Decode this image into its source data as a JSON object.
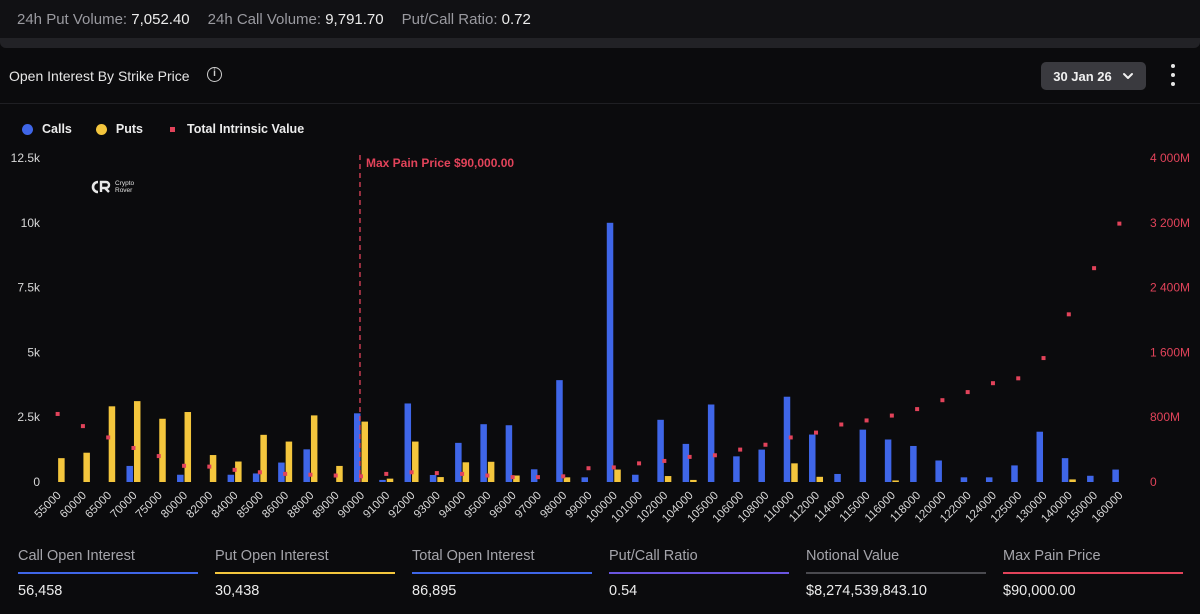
{
  "topbar": {
    "put_volume_label": "24h Put Volume:",
    "put_volume_value": "7,052.40",
    "call_volume_label": "24h Call Volume:",
    "call_volume_value": "9,791.70",
    "ratio_label": "Put/Call Ratio:",
    "ratio_value": "0.72"
  },
  "card": {
    "title": "Open Interest By Strike Price",
    "info_icon": "info-icon",
    "date_selected": "30 Jan 26",
    "menu_icon": "kebab-icon"
  },
  "legend": {
    "calls": "Calls",
    "puts": "Puts",
    "intrinsic": "Total Intrinsic Value"
  },
  "logo": {
    "line1": "Crypto",
    "line2": "Rover"
  },
  "colors": {
    "calls": "#3f66e8",
    "puts": "#f4c63d",
    "intrinsic": "#e2435a",
    "maxpain": "#e2435a"
  },
  "chart_data": {
    "type": "bar",
    "categories": [
      "55000",
      "60000",
      "65000",
      "70000",
      "75000",
      "80000",
      "82000",
      "84000",
      "85000",
      "86000",
      "88000",
      "89000",
      "90000",
      "91000",
      "92000",
      "93000",
      "94000",
      "95000",
      "96000",
      "97000",
      "98000",
      "99000",
      "100000",
      "101000",
      "102000",
      "104000",
      "105000",
      "106000",
      "108000",
      "110000",
      "112000",
      "114000",
      "115000",
      "116000",
      "118000",
      "120000",
      "122000",
      "124000",
      "125000",
      "130000",
      "140000",
      "150000",
      "160000"
    ],
    "series": [
      {
        "name": "Calls",
        "axis": "left",
        "values": [
          0,
          0,
          0,
          620,
          0,
          280,
          0,
          280,
          330,
          750,
          1260,
          0,
          2650,
          80,
          3030,
          270,
          1510,
          2230,
          2190,
          490,
          3930,
          180,
          10000,
          280,
          2400,
          1470,
          2990,
          990,
          1250,
          3290,
          1830,
          310,
          2020,
          1640,
          1390,
          830,
          180,
          180,
          640,
          1940,
          920,
          240,
          480
        ]
      },
      {
        "name": "Puts",
        "axis": "left",
        "values": [
          920,
          1130,
          2920,
          3120,
          2440,
          2700,
          1040,
          790,
          1820,
          1560,
          2570,
          620,
          2330,
          130,
          1560,
          190,
          760,
          780,
          250,
          0,
          180,
          0,
          480,
          0,
          230,
          80,
          0,
          0,
          0,
          720,
          200,
          0,
          0,
          60,
          0,
          0,
          0,
          0,
          0,
          0,
          100,
          0,
          0
        ]
      },
      {
        "name": "Total Intrinsic Value",
        "axis": "right",
        "type": "scatter",
        "values": [
          840,
          690,
          550,
          420,
          320,
          200,
          190,
          150,
          120,
          100,
          90,
          80,
          70,
          100,
          120,
          110,
          100,
          80,
          60,
          60,
          70,
          170,
          180,
          230,
          260,
          310,
          330,
          400,
          460,
          550,
          610,
          710,
          760,
          820,
          900,
          1010,
          1110,
          1220,
          1280,
          1530,
          2070,
          2640,
          3190
        ]
      }
    ],
    "yleft": {
      "ticks": [
        "0",
        "2.5k",
        "5k",
        "7.5k",
        "10k",
        "12.5k"
      ],
      "max": 12500
    },
    "yright": {
      "ticks": [
        "0",
        "800M",
        "1 600M",
        "2 400M",
        "3 200M",
        "4 000M"
      ],
      "max": 4000
    },
    "annotation": {
      "label": "Max Pain Price $90,000.00",
      "category": "90000"
    }
  },
  "stats": [
    {
      "label": "Call Open Interest",
      "value": "56,458",
      "color": "#3f66e8"
    },
    {
      "label": "Put Open Interest",
      "value": "30,438",
      "color": "#f4c63d"
    },
    {
      "label": "Total Open Interest",
      "value": "86,895",
      "color": "#3f66e8"
    },
    {
      "label": "Put/Call Ratio",
      "value": "0.54",
      "color": "#6a55e0"
    },
    {
      "label": "Notional Value",
      "value": "$8,274,539,843.10",
      "color": "#4a4a4f"
    },
    {
      "label": "Max Pain Price",
      "value": "$90,000.00",
      "color": "#e2435a"
    }
  ]
}
